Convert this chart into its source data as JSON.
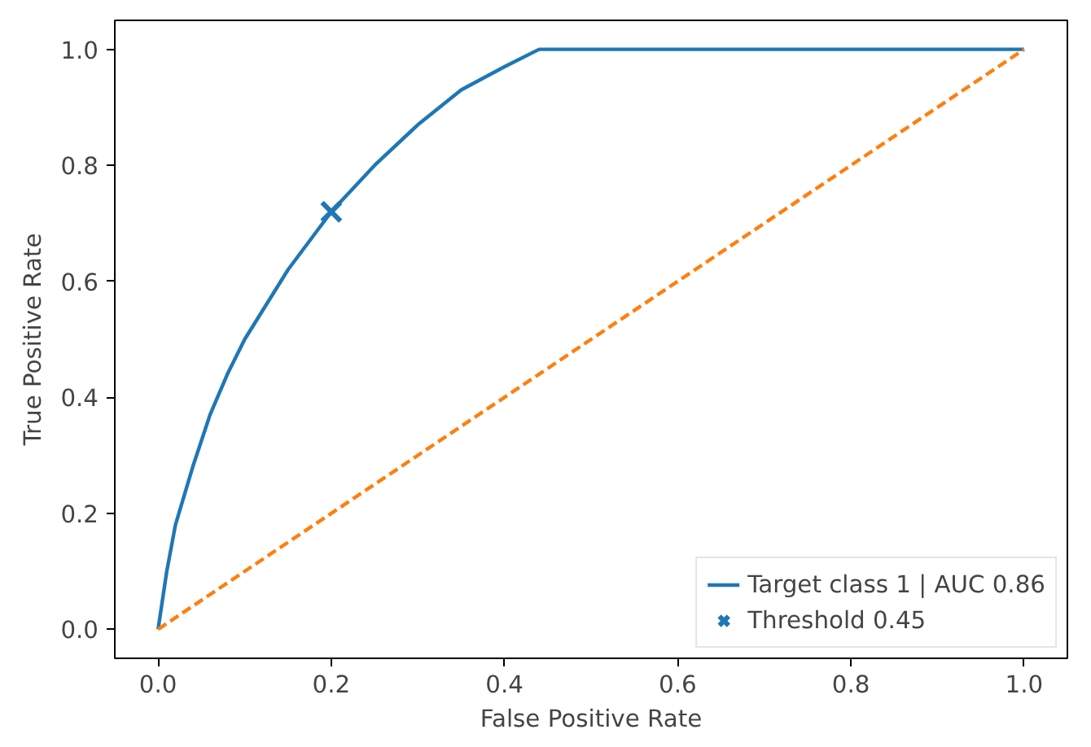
{
  "chart_data": {
    "type": "line",
    "xlabel": "False Positive Rate",
    "ylabel": "True Positive Rate",
    "xlim": [
      -0.05,
      1.05
    ],
    "ylim": [
      -0.05,
      1.05
    ],
    "xticks": [
      {
        "value": 0,
        "label": "0.0"
      },
      {
        "value": 0.2,
        "label": "0.2"
      },
      {
        "value": 0.4,
        "label": "0.4"
      },
      {
        "value": 0.6,
        "label": "0.6"
      },
      {
        "value": 0.8,
        "label": "0.8"
      },
      {
        "value": 1,
        "label": "1.0"
      }
    ],
    "yticks": [
      {
        "value": 0,
        "label": "0.0"
      },
      {
        "value": 0.2,
        "label": "0.2"
      },
      {
        "value": 0.4,
        "label": "0.4"
      },
      {
        "value": 0.6,
        "label": "0.6"
      },
      {
        "value": 0.8,
        "label": "0.8"
      },
      {
        "value": 1,
        "label": "1.0"
      }
    ],
    "grid": false,
    "legend": "bottom right",
    "series": [
      {
        "name": "Target class 1 | AUC 0.86",
        "color": "#1f77b4",
        "line_style": "solid",
        "x": [
          0,
          0.01,
          0.02,
          0.04,
          0.06,
          0.08,
          0.1,
          0.15,
          0.2,
          0.25,
          0.3,
          0.35,
          0.4,
          0.44,
          1.0
        ],
        "values": [
          0,
          0.1,
          0.18,
          0.28,
          0.37,
          0.44,
          0.5,
          0.62,
          0.72,
          0.8,
          0.87,
          0.93,
          0.97,
          1.0,
          1.0
        ]
      },
      {
        "color": "#ff7f0e",
        "line_style": "dashed",
        "x": [
          0,
          1
        ],
        "values": [
          0,
          1
        ]
      },
      {
        "name": "Threshold 0.45",
        "type": "scatter",
        "color": "#1f77b4",
        "marker": "cross",
        "x": [
          0.2
        ],
        "values": [
          0.72
        ]
      }
    ]
  }
}
